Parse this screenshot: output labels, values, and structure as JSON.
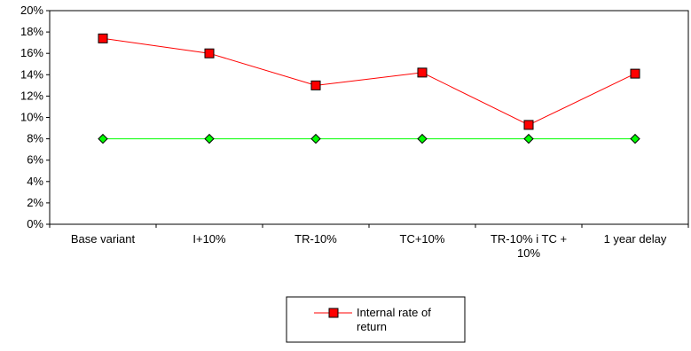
{
  "chart_data": {
    "type": "line",
    "categories": [
      "Base variant",
      "I+10%",
      "TR-10%",
      "TC+10%",
      "TR-10% i TC + 10%",
      "1 year delay"
    ],
    "category_lines": [
      [
        "Base variant"
      ],
      [
        "I+10%"
      ],
      [
        "TR-10%"
      ],
      [
        "TC+10%"
      ],
      [
        "TR-10% i TC +",
        "10%"
      ],
      [
        "1 year delay"
      ]
    ],
    "series": [
      {
        "name": "Internal rate of return",
        "values": [
          17.4,
          16.0,
          13.0,
          14.2,
          9.3,
          14.1
        ],
        "unit": "%",
        "color": "#ff0000",
        "marker": "square",
        "marker_fill": "#ff0000"
      },
      {
        "values": [
          8,
          8,
          8,
          8,
          8,
          8
        ],
        "unit": "%",
        "color": "#00ff00",
        "marker": "diamond",
        "marker_fill": "#00ff00"
      }
    ],
    "y_ticks": [
      "0%",
      "2%",
      "4%",
      "6%",
      "8%",
      "10%",
      "12%",
      "14%",
      "16%",
      "18%",
      "20%"
    ],
    "ylim": [
      0,
      20
    ],
    "title": "",
    "xlabel": "",
    "ylabel": "",
    "grid": false,
    "legend": {
      "placement": "bottom",
      "label_lines": [
        "Internal rate of",
        "return"
      ]
    }
  }
}
